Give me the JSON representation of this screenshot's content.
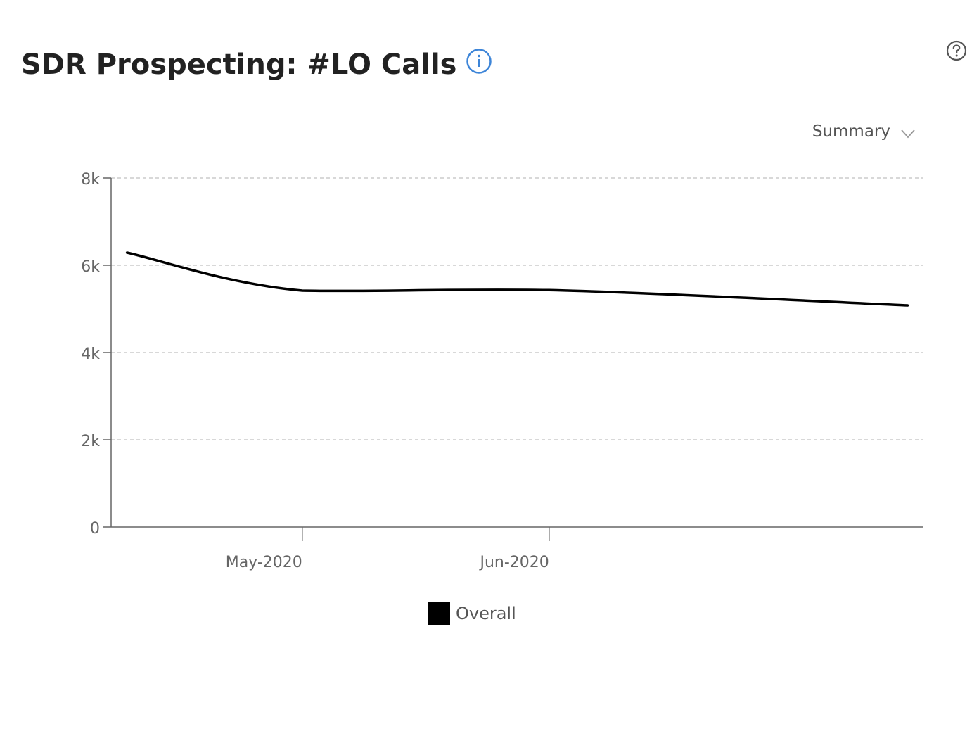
{
  "header": {
    "title": "SDR Prospecting: #LO Calls",
    "info_icon": "info-icon",
    "help_icon": "help-icon"
  },
  "controls": {
    "view_select_label": "Summary",
    "chevron_icon": "chevron-down-icon"
  },
  "colors": {
    "series": "#000000",
    "info_accent": "#3d85d8",
    "grid": "#cccccc",
    "axis": "#666666"
  },
  "chart_data": {
    "type": "line",
    "title": "SDR Prospecting: #LO Calls",
    "xlabel": "",
    "ylabel": "",
    "ylim": [
      0,
      8000
    ],
    "y_ticks": [
      {
        "value": 0,
        "label": "0"
      },
      {
        "value": 2000,
        "label": "2k"
      },
      {
        "value": 4000,
        "label": "4k"
      },
      {
        "value": 6000,
        "label": "6k"
      },
      {
        "value": 8000,
        "label": "8k"
      }
    ],
    "xlim": [
      "2020-04-07",
      "2020-07-18"
    ],
    "x_ticks": [
      {
        "value": "2020-05-01",
        "label": "May-2020"
      },
      {
        "value": "2020-06-01",
        "label": "Jun-2020"
      }
    ],
    "grid": true,
    "legend_position": "bottom-center",
    "series": [
      {
        "name": "Overall",
        "x": [
          "2020-04-09",
          "2020-05-01",
          "2020-06-01",
          "2020-07-16"
        ],
        "values": [
          6290,
          5420,
          5430,
          5080
        ]
      }
    ]
  }
}
